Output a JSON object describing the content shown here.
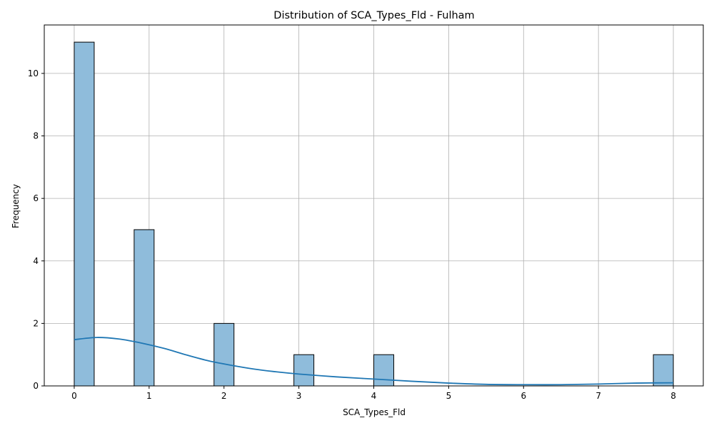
{
  "chart_data": {
    "type": "bar",
    "title": "Distribution of SCA_Types_Fld - Fulham",
    "xlabel": "SCA_Types_Fld",
    "ylabel": "Frequency",
    "xlim": [
      -0.4,
      8.4
    ],
    "ylim": [
      0,
      11.55
    ],
    "xticks": [
      "0",
      "1",
      "2",
      "3",
      "4",
      "5",
      "6",
      "7",
      "8"
    ],
    "yticks": [
      "0",
      "2",
      "4",
      "6",
      "8",
      "10"
    ],
    "grid": true,
    "bin_width": 0.2667,
    "bars": [
      {
        "x_start": 0.0,
        "value": 11
      },
      {
        "x_start": 0.8,
        "value": 5
      },
      {
        "x_start": 1.8667,
        "value": 2
      },
      {
        "x_start": 2.9333,
        "value": 1
      },
      {
        "x_start": 4.0,
        "value": 1
      },
      {
        "x_start": 7.7333,
        "value": 1
      }
    ],
    "kde": {
      "x": [
        0,
        0.3,
        0.6,
        0.9,
        1.2,
        1.5,
        1.8,
        2.1,
        2.4,
        2.7,
        3.0,
        3.5,
        4.0,
        4.5,
        5.0,
        5.5,
        6.0,
        6.5,
        7.0,
        7.5,
        8.0
      ],
      "y": [
        1.48,
        1.55,
        1.5,
        1.37,
        1.2,
        0.99,
        0.8,
        0.66,
        0.54,
        0.45,
        0.38,
        0.29,
        0.22,
        0.15,
        0.09,
        0.05,
        0.04,
        0.04,
        0.06,
        0.09,
        0.1
      ]
    },
    "colors": {
      "bar_fill": "#8fbcdb",
      "bar_edge": "#000000",
      "kde_line": "#1f77b4",
      "grid": "#b0b0b0"
    }
  }
}
